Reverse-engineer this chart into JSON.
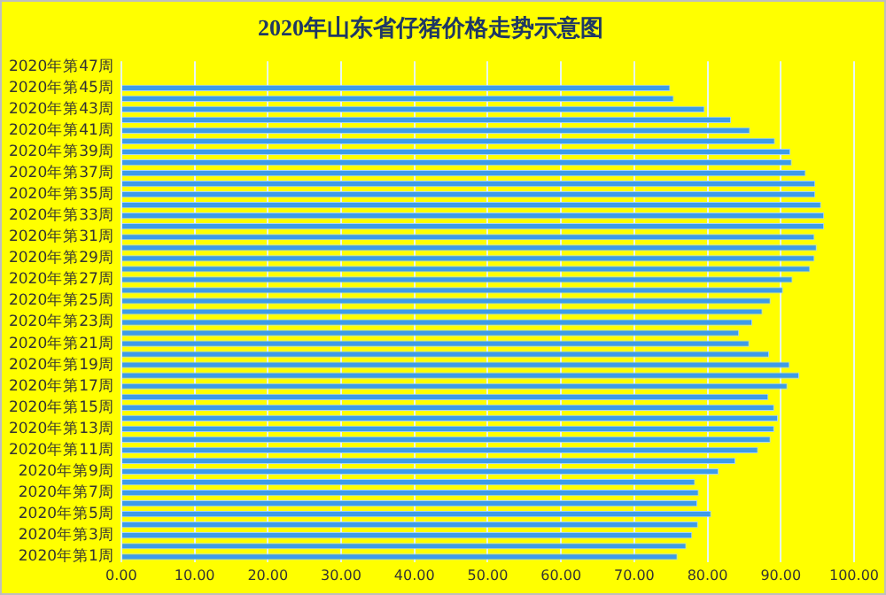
{
  "chart_data": {
    "type": "bar",
    "orientation": "horizontal",
    "title": "2020年山东省仔猪价格走势示意图",
    "categories": [
      "2020年第47周",
      null,
      "2020年第45周",
      null,
      "2020年第43周",
      null,
      "2020年第41周",
      null,
      "2020年第39周",
      null,
      "2020年第37周",
      null,
      "2020年第35周",
      null,
      "2020年第33周",
      null,
      "2020年第31周",
      null,
      "2020年第29周",
      null,
      "2020年第27周",
      null,
      "2020年第25周",
      null,
      "2020年第23周",
      null,
      "2020年第21周",
      null,
      "2020年第19周",
      null,
      "2020年第17周",
      null,
      "2020年第15周",
      null,
      "2020年第13周",
      null,
      "2020年第11周",
      null,
      "2020年第9周",
      null,
      "2020年第7周",
      null,
      "2020年第5周",
      null,
      "2020年第3周",
      null,
      "2020年第1周"
    ],
    "values": [
      null,
      null,
      74.9,
      75.4,
      79.6,
      83.2,
      85.8,
      89.2,
      91.3,
      91.5,
      93.4,
      94.7,
      94.7,
      95.5,
      95.9,
      95.9,
      94.6,
      94.9,
      94.6,
      94.0,
      91.6,
      90.3,
      88.6,
      87.5,
      86.1,
      84.3,
      85.7,
      88.4,
      91.2,
      92.5,
      90.9,
      88.3,
      89.1,
      89.6,
      89.1,
      88.6,
      86.9,
      83.8,
      81.5,
      78.3,
      78.8,
      78.6,
      80.5,
      78.7,
      77.9,
      77.1,
      75.9
    ],
    "color": "#3d9be9",
    "xlim": [
      0,
      100
    ],
    "xticks": [
      {
        "value": 0,
        "label": "0.00"
      },
      {
        "value": 10,
        "label": "10.00"
      },
      {
        "value": 20,
        "label": "20.00"
      },
      {
        "value": 30,
        "label": "30.00"
      },
      {
        "value": 40,
        "label": "40.00"
      },
      {
        "value": 50,
        "label": "50.00"
      },
      {
        "value": 60,
        "label": "60.00"
      },
      {
        "value": 70,
        "label": "70.00"
      },
      {
        "value": 80,
        "label": "80.00"
      },
      {
        "value": 90,
        "label": "90.00"
      },
      {
        "value": 100,
        "label": "100.00"
      }
    ],
    "grid": "x",
    "legend": false
  }
}
